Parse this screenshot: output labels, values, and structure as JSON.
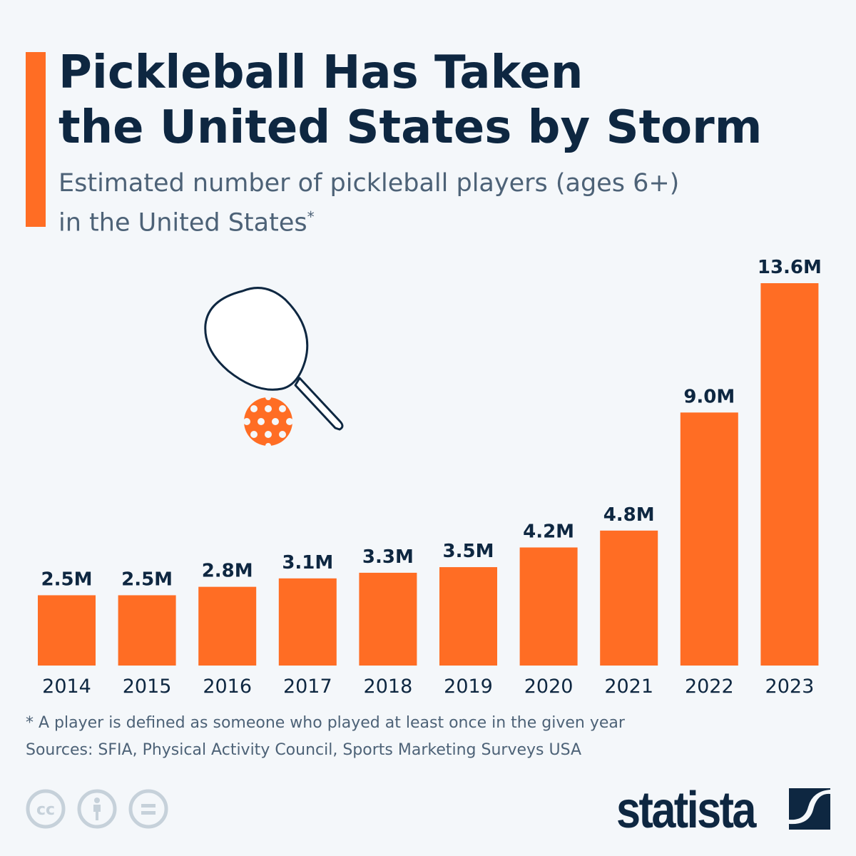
{
  "title_line1": "Pickleball Has Taken",
  "title_line2": "the United States by Storm",
  "subtitle_line1": "Estimated number of pickleball players (ages 6+)",
  "subtitle_line2": "in the United States",
  "subtitle_mark": "*",
  "footnote": "* A player is defined as someone who played at least once in the given year",
  "sources": "Sources: SFIA, Physical Activity Council, Sports Marketing Surveys USA",
  "brand": "statista",
  "colors": {
    "bar": "#ff6d24",
    "text": "#0e2741",
    "background": "#f4f7fa"
  },
  "icons": [
    "pickleball-paddle-icon",
    "pickleball-ball-icon",
    "cc-license-icon",
    "attribution-icon",
    "no-derivatives-icon",
    "statista-logo-icon"
  ],
  "chart_data": {
    "type": "bar",
    "categories": [
      "2014",
      "2015",
      "2016",
      "2017",
      "2018",
      "2019",
      "2020",
      "2021",
      "2022",
      "2023"
    ],
    "values": [
      2.5,
      2.5,
      2.8,
      3.1,
      3.3,
      3.5,
      4.2,
      4.8,
      9.0,
      13.6
    ],
    "labels": [
      "2.5M",
      "2.5M",
      "2.8M",
      "3.1M",
      "3.3M",
      "3.5M",
      "4.2M",
      "4.8M",
      "9.0M",
      "13.6M"
    ],
    "unit": "M",
    "ylim": [
      0,
      13.6
    ],
    "grid": false
  }
}
